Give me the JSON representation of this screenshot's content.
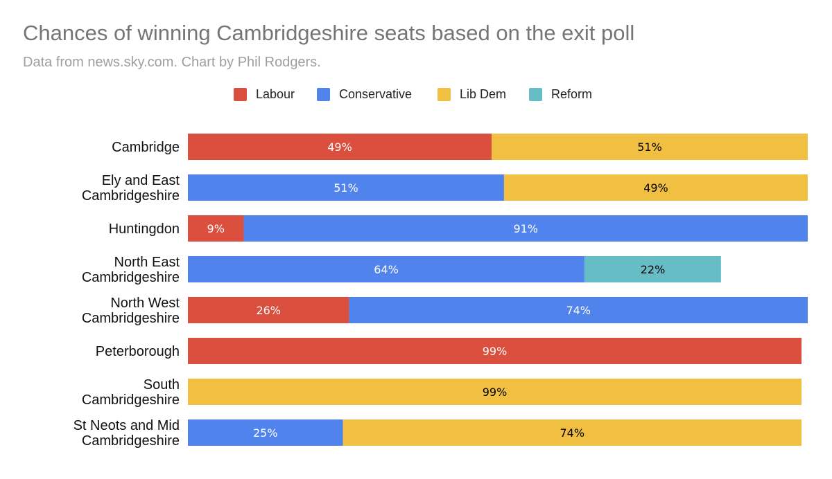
{
  "chart_data": {
    "type": "bar",
    "orientation": "horizontal",
    "stacked": true,
    "title": "Chances of winning Cambridgeshire seats based on the exit poll",
    "subtitle": "Data from news.sky.com. Chart by Phil Rodgers.",
    "legend_position": "top",
    "grid": false,
    "xlim": [
      0,
      100
    ],
    "categories": [
      [
        "Cambridge"
      ],
      [
        "Ely and East",
        "Cambridgeshire"
      ],
      [
        "Huntingdon"
      ],
      [
        "North East",
        "Cambridgeshire"
      ],
      [
        "North West",
        "Cambridgeshire"
      ],
      [
        "Peterborough"
      ],
      [
        "South",
        "Cambridgeshire"
      ],
      [
        "St Neots and Mid",
        "Cambridgeshire"
      ]
    ],
    "series": [
      {
        "name": "Labour",
        "color": "#db4f3f",
        "label_color": "#ffffff",
        "values": [
          49,
          0,
          9,
          0,
          26,
          99,
          0,
          0
        ]
      },
      {
        "name": "Conservative",
        "color": "#5183ec",
        "label_color": "#ffffff",
        "values": [
          0,
          51,
          91,
          64,
          74,
          0,
          0,
          25
        ]
      },
      {
        "name": "Lib Dem",
        "color": "#f1bf42",
        "label_color": "#000000",
        "values": [
          51,
          49,
          0,
          0,
          0,
          0,
          99,
          74
        ]
      },
      {
        "name": "Reform",
        "color": "#67bdc5",
        "label_color": "#000000",
        "values": [
          0,
          0,
          0,
          22,
          0,
          0,
          0,
          0
        ]
      }
    ]
  }
}
